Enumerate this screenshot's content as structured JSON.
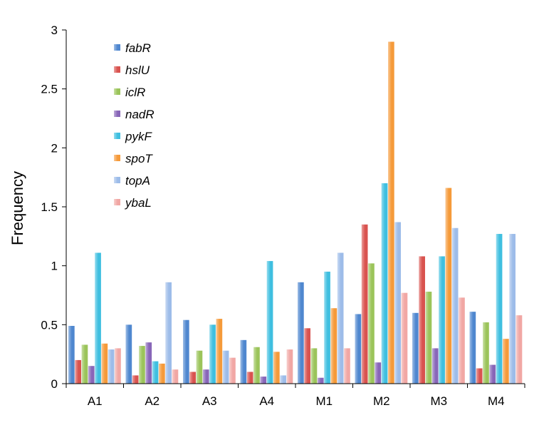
{
  "chart_data": {
    "type": "bar",
    "title": "",
    "xlabel": "",
    "ylabel": "Frequency",
    "ylim": [
      0,
      3
    ],
    "yticks": [
      "0",
      "0.5",
      "1",
      "1.5",
      "2",
      "2.5",
      "3"
    ],
    "grid": false,
    "legend_position": "top-left",
    "categories": [
      "A1",
      "A2",
      "A3",
      "A4",
      "M1",
      "M2",
      "M3",
      "M4"
    ],
    "series": [
      {
        "name": "fabR",
        "color": "#4f87cf",
        "values": [
          0.49,
          0.5,
          0.54,
          0.37,
          0.86,
          0.59,
          0.6,
          0.61
        ]
      },
      {
        "name": "hslU",
        "color": "#d9534f",
        "values": [
          0.2,
          0.07,
          0.1,
          0.1,
          0.47,
          1.35,
          1.08,
          0.13
        ]
      },
      {
        "name": "iclR",
        "color": "#9bc45a",
        "values": [
          0.33,
          0.32,
          0.28,
          0.31,
          0.3,
          1.02,
          0.78,
          0.52
        ]
      },
      {
        "name": "nadR",
        "color": "#8866b8",
        "values": [
          0.15,
          0.35,
          0.12,
          0.06,
          0.05,
          0.18,
          0.3,
          0.16
        ]
      },
      {
        "name": "pykF",
        "color": "#3fbfe0",
        "values": [
          1.11,
          0.19,
          0.5,
          1.04,
          0.95,
          1.7,
          1.08,
          1.27
        ]
      },
      {
        "name": "spoT",
        "color": "#f59a3a",
        "values": [
          0.34,
          0.17,
          0.55,
          0.27,
          0.64,
          2.9,
          1.66,
          0.38
        ]
      },
      {
        "name": "topA",
        "color": "#9dbce9",
        "values": [
          0.29,
          0.86,
          0.28,
          0.07,
          1.11,
          1.37,
          1.32,
          1.27
        ]
      },
      {
        "name": "ybaL",
        "color": "#f1a7a4",
        "values": [
          0.3,
          0.12,
          0.22,
          0.29,
          0.3,
          0.77,
          0.73,
          0.58
        ]
      }
    ]
  }
}
